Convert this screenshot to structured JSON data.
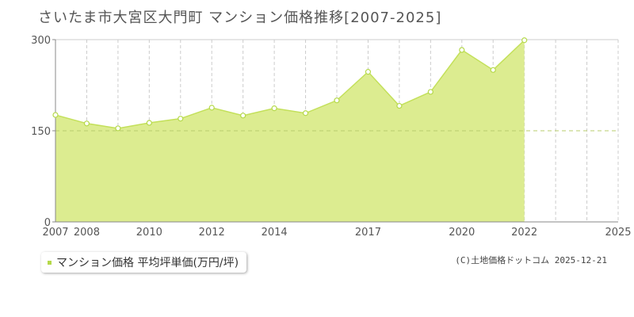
{
  "header": {
    "title": "さいたま市大宮区大門町 マンション価格推移[2007-2025]"
  },
  "legend": {
    "label": "マンション価格 平均坪単価(万円/坪)"
  },
  "footer": {
    "copyright": "(C)土地価格ドットコム 2025-12-21"
  },
  "colors": {
    "fill": "#dcec90",
    "line": "#c3e05a",
    "point_stroke": "#b5d94a",
    "grid": "#cccccc",
    "reference": "#b8cc6e"
  },
  "chart_data": {
    "type": "area",
    "title": "さいたま市大宮区大門町 マンション価格推移[2007-2025]",
    "xlabel": "",
    "ylabel": "",
    "x": [
      2007,
      2008,
      2009,
      2010,
      2011,
      2012,
      2013,
      2014,
      2015,
      2016,
      2017,
      2018,
      2019,
      2020,
      2021,
      2022,
      2023,
      2024,
      2025
    ],
    "series": [
      {
        "name": "マンション価格 平均坪単価(万円/坪)",
        "points": [
          {
            "x": 2007,
            "y": 176
          },
          {
            "x": 2008,
            "y": 162
          },
          {
            "x": 2009,
            "y": 154
          },
          {
            "x": 2010,
            "y": 163
          },
          {
            "x": 2011,
            "y": 170
          },
          {
            "x": 2012,
            "y": 188
          },
          {
            "x": 2013,
            "y": 175
          },
          {
            "x": 2014,
            "y": 187
          },
          {
            "x": 2015,
            "y": 179
          },
          {
            "x": 2016,
            "y": 200
          },
          {
            "x": 2017,
            "y": 247
          },
          {
            "x": 2018,
            "y": 191
          },
          {
            "x": 2019,
            "y": 214
          },
          {
            "x": 2020,
            "y": 283
          },
          {
            "x": 2021,
            "y": 250
          },
          {
            "x": 2022,
            "y": 299
          }
        ]
      }
    ],
    "x_ticks": [
      2007,
      2008,
      2010,
      2012,
      2014,
      2017,
      2020,
      2022,
      2025
    ],
    "y_ticks": [
      0,
      150,
      300
    ],
    "xlim": [
      2007,
      2025
    ],
    "ylim": [
      0,
      300
    ],
    "reference_line": 150,
    "grid": true,
    "legend_position": "bottom-left"
  }
}
